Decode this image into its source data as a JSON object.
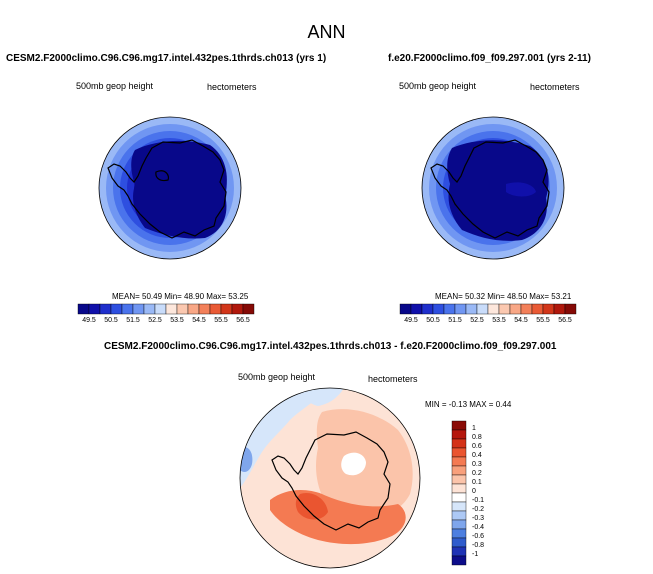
{
  "page_title": "ANN",
  "colors": {
    "coast": "#000000",
    "diff_palette": [
      "#0d0d8a",
      "#1f33b5",
      "#2f5ccc",
      "#4d7fe0",
      "#7fa6ec",
      "#adc9f5",
      "#d6e6fa",
      "#ffffff",
      "#fde3d6",
      "#fbc4aa",
      "#f8a07c",
      "#f47a52",
      "#ea5530",
      "#d43218",
      "#b5170d",
      "#8a0b06"
    ],
    "abs_palette": [
      "#08088a",
      "#1010aa",
      "#1f2fcc",
      "#2e4fe0",
      "#4a73ec",
      "#7096f2",
      "#9ab9f6",
      "#c9dcfa",
      "#fde7dc",
      "#fbc8b0",
      "#f8a786",
      "#f3805a",
      "#e95a35",
      "#d2361a",
      "#b0180c",
      "#850a06"
    ]
  },
  "panels": {
    "left": {
      "case_title": "CESM2.F2000climo.C96.C96.mg17.intel.432pes.1thrds.ch013 (yrs 1)",
      "variable": "500mb geop height",
      "units": "hectometers",
      "stats": "MEAN= 50.49  Min= 48.90  Max= 53.25"
    },
    "right": {
      "case_title": "f.e20.F2000climo.f09_f09.297.001 (yrs 2-11)",
      "variable": "500mb geop height",
      "units": "hectometers",
      "stats": "MEAN= 50.32  Min= 48.50  Max= 53.21"
    },
    "diff": {
      "case_title": "CESM2.F2000climo.C96.C96.mg17.intel.432pes.1thrds.ch013 - f.e20.F2000climo.f09_f09.297.001",
      "variable": "500mb geop height",
      "units": "hectometers",
      "stats": "MIN =  -0.13 MAX =  0.44"
    }
  },
  "chart_data": [
    {
      "type": "heatmap",
      "projection": "south-polar-stereographic",
      "title": "CESM2.F2000climo.C96.C96.mg17.intel.432pes.1thrds.ch013 (yrs 1)",
      "variable": "500mb geop height",
      "units": "hectometers",
      "mean": 50.49,
      "min": 48.9,
      "max": 53.25,
      "contour_levels": [
        "49.5",
        "50",
        "50.5",
        "51",
        "51.5",
        "52",
        "52.5",
        "53",
        "53.5",
        "54",
        "54.5",
        "55",
        "55.5",
        "56",
        "56.5"
      ],
      "colorbar_labels": [
        "49.5",
        "50.5",
        "51.5",
        "52.5",
        "53.5",
        "54.5",
        "55.5",
        "56.5"
      ],
      "field_rings": [
        {
          "level": 53.25,
          "band": 6
        },
        {
          "level": 53.0,
          "band": 5
        },
        {
          "level": 52.5,
          "band": 4
        },
        {
          "level": 52.0,
          "band": 3
        },
        {
          "level": 51.0,
          "band": 2
        },
        {
          "level": 50.0,
          "band": 1
        }
      ],
      "legend": "bottom"
    },
    {
      "type": "heatmap",
      "projection": "south-polar-stereographic",
      "title": "f.e20.F2000climo.f09_f09.297.001 (yrs 2-11)",
      "variable": "500mb geop height",
      "units": "hectometers",
      "mean": 50.32,
      "min": 48.5,
      "max": 53.21,
      "contour_levels": [
        "49.5",
        "50",
        "50.5",
        "51",
        "51.5",
        "52",
        "52.5",
        "53",
        "53.5",
        "54",
        "54.5",
        "55",
        "55.5",
        "56",
        "56.5"
      ],
      "colorbar_labels": [
        "49.5",
        "50.5",
        "51.5",
        "52.5",
        "53.5",
        "54.5",
        "55.5",
        "56.5"
      ],
      "field_rings": [
        {
          "level": 53.21,
          "band": 6
        },
        {
          "level": 53.0,
          "band": 5
        },
        {
          "level": 52.5,
          "band": 4
        },
        {
          "level": 52.0,
          "band": 3
        },
        {
          "level": 51.0,
          "band": 2
        },
        {
          "level": 50.0,
          "band": 1
        }
      ],
      "legend": "bottom"
    },
    {
      "type": "heatmap",
      "projection": "south-polar-stereographic",
      "title": "CESM2.F2000climo.C96.C96.mg17.intel.432pes.1thrds.ch013 - f.e20.F2000climo.f09_f09.297.001",
      "variable": "500mb geop height",
      "units": "hectometers",
      "min": -0.13,
      "max": 0.44,
      "contour_levels": [
        "-1",
        "-0.8",
        "-0.6",
        "-0.4",
        "-0.3",
        "-0.2",
        "-0.1",
        "0",
        "0.1",
        "0.2",
        "0.3",
        "0.4",
        "0.6",
        "0.8",
        "1"
      ],
      "legend": "right"
    }
  ]
}
